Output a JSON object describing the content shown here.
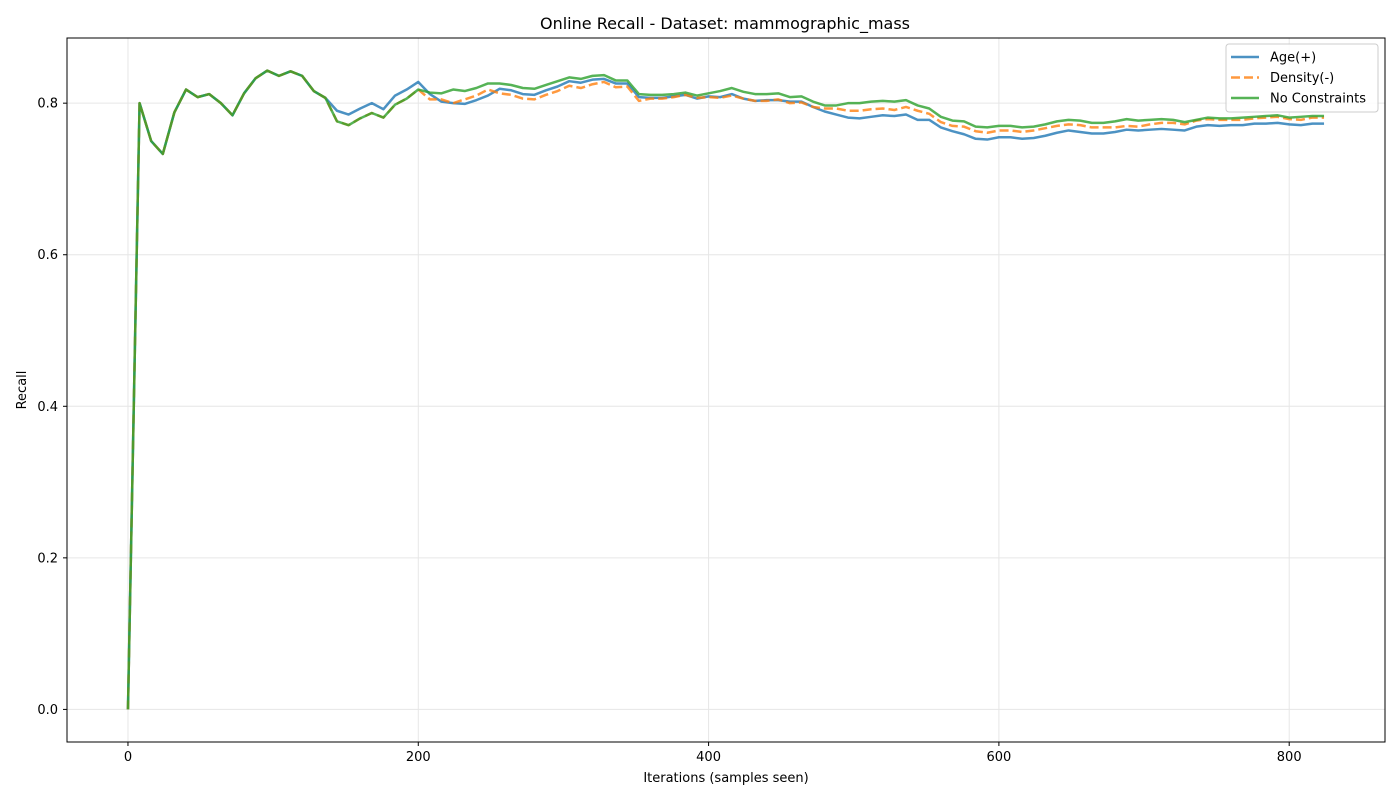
{
  "chart_data": {
    "type": "line",
    "title": "Online Recall - Dataset: mammographic_mass",
    "xlabel": "Iterations (samples seen)",
    "ylabel": "Recall",
    "xlim": [
      -42,
      866
    ],
    "ylim": [
      -0.043,
      0.886
    ],
    "xticks": [
      0,
      200,
      400,
      600,
      800
    ],
    "xtick_labels": [
      "0",
      "200",
      "400",
      "600",
      "800"
    ],
    "yticks": [
      0.0,
      0.2,
      0.4,
      0.6,
      0.8
    ],
    "ytick_labels": [
      "0.0",
      "0.2",
      "0.4",
      "0.6",
      "0.8"
    ],
    "grid": true,
    "legend_position": "top-right",
    "x": [
      0,
      8,
      16,
      24,
      32,
      40,
      48,
      56,
      64,
      72,
      80,
      88,
      96,
      104,
      112,
      120,
      128,
      136,
      144,
      152,
      160,
      168,
      176,
      184,
      192,
      200,
      208,
      216,
      224,
      232,
      240,
      248,
      256,
      264,
      272,
      280,
      288,
      296,
      304,
      312,
      320,
      328,
      336,
      344,
      352,
      360,
      368,
      376,
      384,
      392,
      400,
      408,
      416,
      424,
      432,
      440,
      448,
      456,
      464,
      472,
      480,
      488,
      496,
      504,
      512,
      520,
      528,
      536,
      544,
      552,
      560,
      568,
      576,
      584,
      592,
      600,
      608,
      616,
      624,
      632,
      640,
      648,
      656,
      664,
      672,
      680,
      688,
      696,
      704,
      712,
      720,
      728,
      736,
      744,
      752,
      760,
      768,
      776,
      784,
      792,
      800,
      808,
      816,
      824
    ],
    "series": [
      {
        "name": "Age(+)",
        "color": "#1f77b4",
        "dash": "solid",
        "values": [
          0.0,
          0.8,
          0.75,
          0.733,
          0.788,
          0.818,
          0.808,
          0.812,
          0.8,
          0.784,
          0.813,
          0.833,
          0.843,
          0.836,
          0.842,
          0.836,
          0.816,
          0.807,
          0.79,
          0.785,
          0.793,
          0.8,
          0.792,
          0.81,
          0.818,
          0.828,
          0.812,
          0.802,
          0.8,
          0.799,
          0.804,
          0.81,
          0.819,
          0.817,
          0.812,
          0.811,
          0.817,
          0.822,
          0.829,
          0.827,
          0.831,
          0.832,
          0.826,
          0.826,
          0.808,
          0.807,
          0.807,
          0.809,
          0.811,
          0.806,
          0.809,
          0.808,
          0.812,
          0.806,
          0.803,
          0.804,
          0.804,
          0.802,
          0.802,
          0.795,
          0.789,
          0.785,
          0.781,
          0.78,
          0.782,
          0.784,
          0.783,
          0.785,
          0.778,
          0.778,
          0.768,
          0.763,
          0.759,
          0.753,
          0.752,
          0.755,
          0.755,
          0.753,
          0.754,
          0.757,
          0.761,
          0.764,
          0.762,
          0.76,
          0.76,
          0.762,
          0.765,
          0.764,
          0.765,
          0.766,
          0.765,
          0.764,
          0.769,
          0.771,
          0.77,
          0.771,
          0.771,
          0.773,
          0.773,
          0.774,
          0.772,
          0.771,
          0.773,
          0.773
        ]
      },
      {
        "name": "Density(-)",
        "color": "#ff7f0e",
        "dash": "dashed",
        "values": [
          0.0,
          0.8,
          0.75,
          0.733,
          0.788,
          0.818,
          0.808,
          0.812,
          0.8,
          0.784,
          0.813,
          0.833,
          0.843,
          0.836,
          0.842,
          0.836,
          0.816,
          0.807,
          0.776,
          0.771,
          0.78,
          0.787,
          0.781,
          0.798,
          0.806,
          0.818,
          0.805,
          0.805,
          0.8,
          0.805,
          0.81,
          0.818,
          0.813,
          0.811,
          0.806,
          0.805,
          0.811,
          0.816,
          0.823,
          0.82,
          0.825,
          0.828,
          0.821,
          0.822,
          0.803,
          0.806,
          0.806,
          0.808,
          0.811,
          0.807,
          0.808,
          0.807,
          0.81,
          0.806,
          0.803,
          0.803,
          0.805,
          0.8,
          0.801,
          0.795,
          0.793,
          0.793,
          0.79,
          0.79,
          0.792,
          0.793,
          0.791,
          0.795,
          0.79,
          0.786,
          0.775,
          0.77,
          0.769,
          0.763,
          0.761,
          0.764,
          0.764,
          0.762,
          0.764,
          0.767,
          0.77,
          0.772,
          0.771,
          0.768,
          0.768,
          0.768,
          0.77,
          0.769,
          0.772,
          0.774,
          0.774,
          0.772,
          0.777,
          0.779,
          0.778,
          0.778,
          0.778,
          0.78,
          0.781,
          0.782,
          0.779,
          0.778,
          0.781,
          0.781
        ]
      },
      {
        "name": "No Constraints",
        "color": "#2ca02c",
        "dash": "solid",
        "values": [
          0.0,
          0.8,
          0.75,
          0.733,
          0.788,
          0.818,
          0.808,
          0.812,
          0.8,
          0.784,
          0.813,
          0.833,
          0.843,
          0.836,
          0.842,
          0.836,
          0.816,
          0.807,
          0.776,
          0.771,
          0.78,
          0.787,
          0.781,
          0.798,
          0.806,
          0.818,
          0.814,
          0.813,
          0.818,
          0.816,
          0.82,
          0.826,
          0.826,
          0.824,
          0.82,
          0.819,
          0.824,
          0.829,
          0.834,
          0.832,
          0.836,
          0.837,
          0.83,
          0.83,
          0.812,
          0.811,
          0.811,
          0.812,
          0.814,
          0.81,
          0.813,
          0.816,
          0.82,
          0.815,
          0.812,
          0.812,
          0.813,
          0.808,
          0.809,
          0.802,
          0.797,
          0.797,
          0.8,
          0.8,
          0.802,
          0.803,
          0.802,
          0.804,
          0.797,
          0.793,
          0.782,
          0.777,
          0.776,
          0.769,
          0.768,
          0.77,
          0.77,
          0.768,
          0.769,
          0.772,
          0.776,
          0.778,
          0.777,
          0.774,
          0.774,
          0.776,
          0.779,
          0.777,
          0.778,
          0.779,
          0.778,
          0.775,
          0.778,
          0.781,
          0.78,
          0.78,
          0.781,
          0.782,
          0.783,
          0.784,
          0.781,
          0.782,
          0.783,
          0.783
        ]
      }
    ]
  }
}
